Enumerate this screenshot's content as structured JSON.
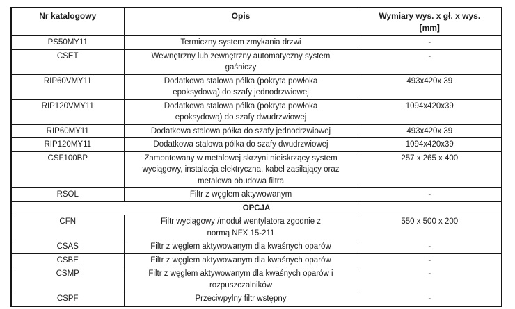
{
  "page": {
    "background_color": "#ffffff",
    "text_color": "#1d1d1d",
    "border_color": "#161616"
  },
  "table": {
    "columns": [
      {
        "label": "Nr katalogowy"
      },
      {
        "label": "Opis"
      },
      {
        "label": "Wymiary wys. x gł. x wys.\n[mm]"
      }
    ],
    "rows_main": [
      {
        "catalog": "PS50MY11",
        "description": "Termiczny system zmykania drzwi",
        "dimensions": "-"
      },
      {
        "catalog": "CSET",
        "description": "Wewnętrzny lub zewnętrzny automatyczny system\ngaśniczy",
        "dimensions": "-"
      },
      {
        "catalog": "RIP60VMY11",
        "description": "Dodatkowa stalowa półka (pokryta powłoka\nepoksydową) do szafy jednodrzwiowej",
        "dimensions": "493x420x 39"
      },
      {
        "catalog": "RIP120VMY11",
        "description": "Dodatkowa stalowa półka (pokryta powłoka\nepoksydową) do szafy dwudrzwiowej",
        "dimensions": "1094x420x39"
      },
      {
        "catalog": "RIP60MY11",
        "description": "Dodatkowa stalowa półka do szafy jednodrzwiowej",
        "dimensions": "493x420x 39"
      },
      {
        "catalog": "RIP120MY11",
        "description": "Dodatkowa stalowa pólka do szafy dwudrzwiowej",
        "dimensions": "1094x420x39"
      },
      {
        "catalog": "CSF100BP",
        "description": "Zamontowany w metalowej skrzyni nieiskrzący system\nwyciągowy, instalacja elektryczna, kabel zasilający oraz\nmetalowa obudowa filtra",
        "dimensions": "257 x 265 x 400"
      },
      {
        "catalog": "RSOL",
        "description": "Filtr z węglem aktywowanym",
        "dimensions": "-"
      }
    ],
    "section_label": "OPCJA",
    "rows_opcja": [
      {
        "catalog": "CFN",
        "description": "Filtr wyciągowy /moduł wentylatora zgodnie z\nnormą NFX 15-211",
        "dimensions": "550 x 500 x 200"
      },
      {
        "catalog": "CSAS",
        "description": "Filtr z węglem aktywowanym dla kwaśnych oparów",
        "dimensions": "-"
      },
      {
        "catalog": "CSBE",
        "description": "Filtr z węglem aktywowanym dla kwaśnych oparów",
        "dimensions": "-"
      },
      {
        "catalog": "CSMP",
        "description": "Filtr z węglem aktywowanym dla kwaśnych oparów i\nrozpuszczalników",
        "dimensions": "-"
      },
      {
        "catalog": "CSPF",
        "description": "Przeciwpylny filtr wstępny",
        "dimensions": "-"
      }
    ]
  }
}
